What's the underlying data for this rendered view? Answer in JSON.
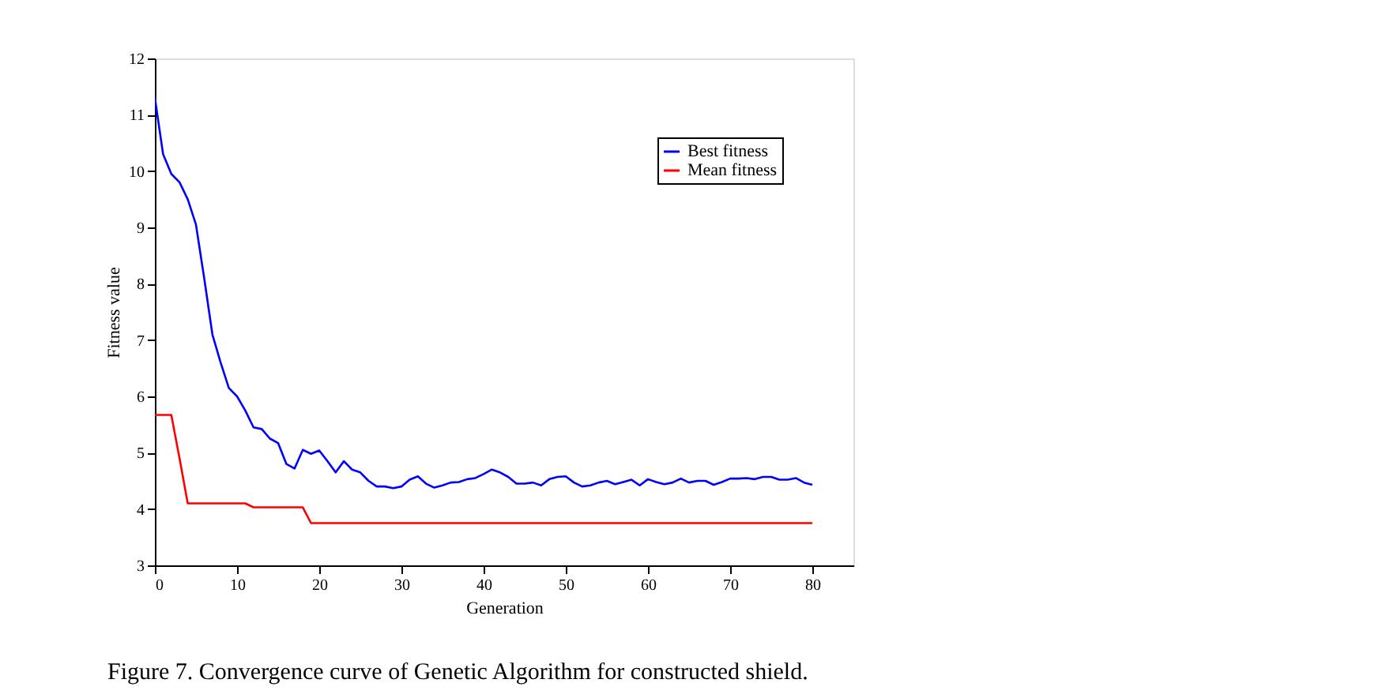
{
  "chart_data": {
    "type": "line",
    "x": [
      0,
      1,
      2,
      3,
      4,
      5,
      6,
      7,
      8,
      9,
      10,
      11,
      12,
      13,
      14,
      15,
      16,
      17,
      18,
      19,
      20,
      21,
      22,
      23,
      24,
      25,
      26,
      27,
      28,
      29,
      30,
      31,
      32,
      33,
      34,
      35,
      36,
      37,
      38,
      39,
      40,
      41,
      42,
      43,
      44,
      45,
      46,
      47,
      48,
      49,
      50,
      51,
      52,
      53,
      54,
      55,
      56,
      57,
      58,
      59,
      60,
      61,
      62,
      63,
      64,
      65,
      66,
      67,
      68,
      69,
      70,
      71,
      72,
      73,
      74,
      75,
      76,
      77,
      78,
      79,
      80
    ],
    "series": [
      {
        "name": "Best fitness",
        "color": "#0000ff",
        "values": [
          11.3,
          10.3,
          9.95,
          9.8,
          9.5,
          9.05,
          8.1,
          7.1,
          6.6,
          6.15,
          6.0,
          5.75,
          5.45,
          5.42,
          5.25,
          5.17,
          4.8,
          4.72,
          5.05,
          4.98,
          5.04,
          4.85,
          4.65,
          4.85,
          4.7,
          4.65,
          4.5,
          4.4,
          4.4,
          4.37,
          4.4,
          4.52,
          4.58,
          4.45,
          4.38,
          4.42,
          4.47,
          4.48,
          4.53,
          4.55,
          4.62,
          4.7,
          4.65,
          4.57,
          4.45,
          4.45,
          4.47,
          4.42,
          4.53,
          4.57,
          4.58,
          4.47,
          4.4,
          4.42,
          4.47,
          4.5,
          4.44,
          4.48,
          4.52,
          4.42,
          4.53,
          4.48,
          4.44,
          4.47,
          4.54,
          4.47,
          4.5,
          4.5,
          4.43,
          4.48,
          4.54,
          4.54,
          4.55,
          4.53,
          4.57,
          4.57,
          4.52,
          4.52,
          4.55,
          4.47,
          4.43
        ]
      },
      {
        "name": "Mean fitness",
        "color": "#ff0000",
        "values": [
          5.67,
          5.67,
          5.67,
          4.9,
          4.1,
          4.1,
          4.1,
          4.1,
          4.1,
          4.1,
          4.1,
          4.1,
          4.03,
          4.03,
          4.03,
          4.03,
          4.03,
          4.03,
          4.03,
          3.75,
          3.75,
          3.75,
          3.75,
          3.75,
          3.75,
          3.75,
          3.75,
          3.75,
          3.75,
          3.75,
          3.75,
          3.75,
          3.75,
          3.75,
          3.75,
          3.75,
          3.75,
          3.75,
          3.75,
          3.75,
          3.75,
          3.75,
          3.75,
          3.75,
          3.75,
          3.75,
          3.75,
          3.75,
          3.75,
          3.75,
          3.75,
          3.75,
          3.75,
          3.75,
          3.75,
          3.75,
          3.75,
          3.75,
          3.75,
          3.75,
          3.75,
          3.75,
          3.75,
          3.75,
          3.75,
          3.75,
          3.75,
          3.75,
          3.75,
          3.75,
          3.75,
          3.75,
          3.75,
          3.75,
          3.75,
          3.75,
          3.75,
          3.75,
          3.75,
          3.75,
          3.75
        ]
      }
    ],
    "xlabel": "Generation",
    "ylabel": "Fitness value",
    "xlim": [
      0,
      85
    ],
    "xticks": [
      0,
      10,
      20,
      30,
      40,
      50,
      60,
      70,
      80
    ],
    "ylim": [
      3,
      12
    ],
    "yticks": [
      3,
      4,
      5,
      6,
      7,
      8,
      9,
      10,
      11,
      12
    ],
    "grid": false,
    "legend": "top right",
    "line_style": "solid",
    "marker": "none",
    "annotations": [
      "Figure 7.  Convergence curve of Genetic Algorithm for constructed shield."
    ]
  }
}
